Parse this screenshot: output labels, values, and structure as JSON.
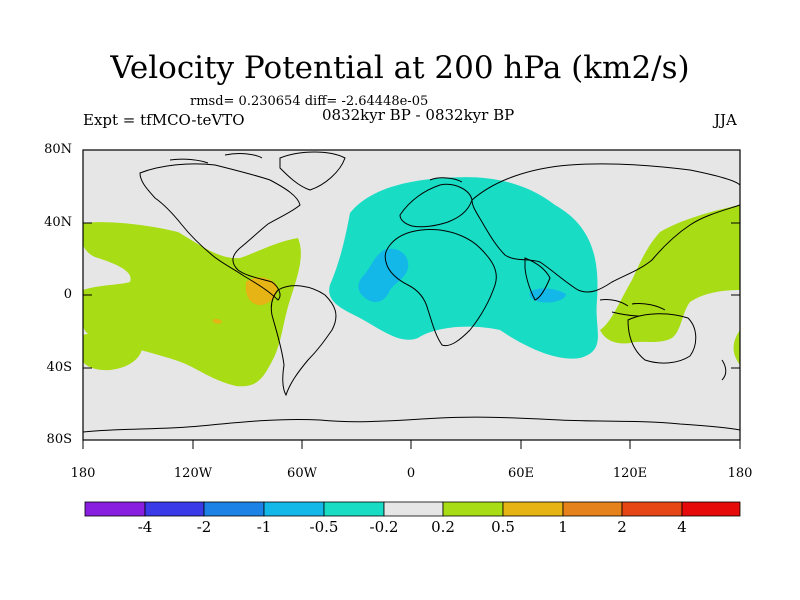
{
  "figure": {
    "title": "Velocity Potential at 200 hPa (km2/s)",
    "stats": "rmsd= 0.230654 diff= -2.64448e-05",
    "left_label": "Expt = tfMCO-teVTO",
    "center_label": "0832kyr BP - 0832kyr BP",
    "right_label": "JJA"
  },
  "axes": {
    "lat_ticks": [
      "80N",
      "40N",
      "0",
      "40S",
      "80S"
    ],
    "lon_ticks": [
      "180",
      "120W",
      "60W",
      "0",
      "60E",
      "120E",
      "180"
    ]
  },
  "colorbar": {
    "labels": [
      "-4",
      "-2",
      "-1",
      "-0.5",
      "-0.2",
      "0.2",
      "0.5",
      "1",
      "2",
      "4"
    ],
    "colors": [
      "#8a1ee0",
      "#3a3ae8",
      "#1c82e6",
      "#14b8e8",
      "#18dcc4",
      "#e6e6e6",
      "#a8dc14",
      "#e6b414",
      "#e6821c",
      "#e64614",
      "#e60a0a"
    ]
  },
  "map": {
    "background": "#e6e6e6",
    "levels": {
      "teal": "#18dcc4",
      "cyan": "#14b8e8",
      "green": "#a8dc14",
      "orange": "#e6b414"
    }
  }
}
